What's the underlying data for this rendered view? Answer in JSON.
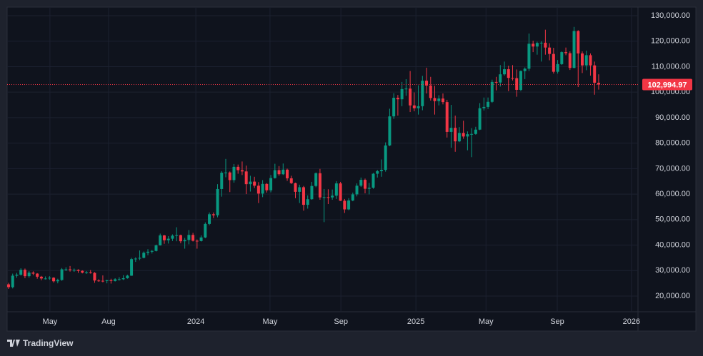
{
  "chart_data": {
    "type": "candlestick",
    "up_color": "#089981",
    "down_color": "#f23645",
    "grid": true,
    "xlim": [
      -0.35,
      153.6
    ],
    "xticks": [
      {
        "value": 10.1,
        "label": "May"
      },
      {
        "value": 24.4,
        "label": "Aug"
      },
      {
        "value": 45.7,
        "label": "2024"
      },
      {
        "value": 63.8,
        "label": "May"
      },
      {
        "value": 81.1,
        "label": "Sep"
      },
      {
        "value": 99.4,
        "label": "2025"
      },
      {
        "value": 116.5,
        "label": "May"
      },
      {
        "value": 133.9,
        "label": "Sep"
      },
      {
        "value": 152.0,
        "label": "2026"
      }
    ],
    "ylim": [
      13840,
      133360
    ],
    "yticks": [
      {
        "value": 20000,
        "label": "20,000.00"
      },
      {
        "value": 30000,
        "label": "30,000.00"
      },
      {
        "value": 40000,
        "label": "40,000.00"
      },
      {
        "value": 50000,
        "label": "50,000.00"
      },
      {
        "value": 60000,
        "label": "60,000.00"
      },
      {
        "value": 70000,
        "label": "70,000.00"
      },
      {
        "value": 80000,
        "label": "80,000.00"
      },
      {
        "value": 90000,
        "label": "90,000.00"
      },
      {
        "value": 100000,
        "label": "100,000.00"
      },
      {
        "value": 110000,
        "label": "110,000.00"
      },
      {
        "value": 120000,
        "label": "120,000.00"
      },
      {
        "value": 130000,
        "label": "130,000.00"
      }
    ],
    "last_price": {
      "value": 102994.97,
      "label": "102,994.97"
    },
    "candles": [
      [
        24600,
        25200,
        22800,
        23500
      ],
      [
        23500,
        28800,
        23000,
        28000
      ],
      [
        28000,
        29100,
        27200,
        28400
      ],
      [
        28400,
        30900,
        28000,
        30300
      ],
      [
        30300,
        30800,
        27000,
        27800
      ],
      [
        27800,
        29800,
        27200,
        29200
      ],
      [
        29200,
        29700,
        28200,
        28800
      ],
      [
        28800,
        29000,
        26800,
        27600
      ],
      [
        27600,
        27900,
        26200,
        26900
      ],
      [
        26900,
        27700,
        26500,
        26900
      ],
      [
        26900,
        27800,
        26400,
        27200
      ],
      [
        27200,
        27400,
        25300,
        25800
      ],
      [
        25800,
        26800,
        25000,
        26300
      ],
      [
        26300,
        31000,
        26000,
        30500
      ],
      [
        30500,
        31300,
        29800,
        30500
      ],
      [
        30500,
        31800,
        29600,
        30200
      ],
      [
        30200,
        30800,
        29500,
        30300
      ],
      [
        30300,
        30500,
        29100,
        29900
      ],
      [
        29900,
        30100,
        28900,
        29200
      ],
      [
        29200,
        29800,
        28700,
        29300
      ],
      [
        29300,
        30200,
        28800,
        29100
      ],
      [
        29100,
        29400,
        25200,
        26100
      ],
      [
        26100,
        26600,
        25600,
        26000
      ],
      [
        26000,
        28100,
        25400,
        25900
      ],
      [
        25900,
        26400,
        25000,
        26200
      ],
      [
        26200,
        26800,
        24900,
        25900
      ],
      [
        25900,
        27000,
        25700,
        26600
      ],
      [
        26600,
        27400,
        26100,
        26600
      ],
      [
        26600,
        28200,
        26300,
        27000
      ],
      [
        27000,
        28400,
        26800,
        28000
      ],
      [
        28000,
        35000,
        27900,
        34500
      ],
      [
        34500,
        35200,
        33400,
        34700
      ],
      [
        34700,
        37900,
        34100,
        35000
      ],
      [
        35000,
        37500,
        34800,
        37000
      ],
      [
        37000,
        38400,
        36000,
        37400
      ],
      [
        37400,
        38100,
        36700,
        37700
      ],
      [
        37700,
        40200,
        37500,
        39900
      ],
      [
        39900,
        44500,
        39800,
        43800
      ],
      [
        43800,
        44000,
        40500,
        41900
      ],
      [
        41900,
        43500,
        40600,
        42500
      ],
      [
        42500,
        44200,
        41600,
        43700
      ],
      [
        43700,
        47000,
        41500,
        43900
      ],
      [
        43900,
        44100,
        40700,
        41500
      ],
      [
        41500,
        42800,
        38600,
        42000
      ],
      [
        42000,
        45900,
        40300,
        44000
      ],
      [
        44000,
        44800,
        41400,
        41700
      ],
      [
        41700,
        42200,
        38600,
        41600
      ],
      [
        41600,
        43800,
        41400,
        43000
      ],
      [
        43000,
        48900,
        42700,
        48300
      ],
      [
        48300,
        52800,
        47800,
        52100
      ],
      [
        52100,
        52800,
        50600,
        51700
      ],
      [
        51700,
        63900,
        50900,
        62000
      ],
      [
        62000,
        69000,
        59000,
        68400
      ],
      [
        68400,
        73800,
        66600,
        68500
      ],
      [
        68500,
        68900,
        60800,
        65500
      ],
      [
        65500,
        71800,
        64500,
        70700
      ],
      [
        70700,
        71600,
        68000,
        69400
      ],
      [
        69400,
        72800,
        67500,
        68900
      ],
      [
        68900,
        71200,
        60000,
        63900
      ],
      [
        63900,
        67200,
        61000,
        64900
      ],
      [
        64900,
        66800,
        62400,
        63300
      ],
      [
        63300,
        64700,
        56500,
        60200
      ],
      [
        60200,
        65500,
        58800,
        64000
      ],
      [
        64000,
        64300,
        60600,
        61500
      ],
      [
        61500,
        67500,
        60700,
        66300
      ],
      [
        66300,
        71900,
        66100,
        69400
      ],
      [
        69400,
        71000,
        67200,
        67800
      ],
      [
        67800,
        72000,
        67500,
        69600
      ],
      [
        69600,
        70000,
        65200,
        66200
      ],
      [
        66200,
        67200,
        64000,
        64300
      ],
      [
        64300,
        64500,
        58400,
        60900
      ],
      [
        60900,
        63700,
        56500,
        62700
      ],
      [
        62700,
        63200,
        53500,
        55800
      ],
      [
        55800,
        59500,
        54300,
        58000
      ],
      [
        58000,
        64800,
        57800,
        63200
      ],
      [
        63200,
        68500,
        62700,
        68200
      ],
      [
        68200,
        69900,
        57800,
        58700
      ],
      [
        58700,
        62000,
        49000,
        58800
      ],
      [
        58800,
        61900,
        56100,
        58700
      ],
      [
        58700,
        61800,
        57800,
        59400
      ],
      [
        59400,
        65100,
        58100,
        64200
      ],
      [
        64200,
        64800,
        57300,
        57400
      ],
      [
        57400,
        58100,
        52600,
        54000
      ],
      [
        54000,
        58400,
        53700,
        57500
      ],
      [
        57500,
        60600,
        57200,
        59900
      ],
      [
        59900,
        64200,
        59100,
        63300
      ],
      [
        63300,
        66500,
        62800,
        65600
      ],
      [
        65600,
        66100,
        60300,
        62100
      ],
      [
        62100,
        64400,
        59900,
        62500
      ],
      [
        62500,
        68300,
        62100,
        68000
      ],
      [
        68000,
        69500,
        66500,
        69000
      ],
      [
        69000,
        73600,
        66800,
        69500
      ],
      [
        69500,
        80300,
        68800,
        79100
      ],
      [
        79100,
        93500,
        78800,
        90500
      ],
      [
        90500,
        99600,
        89500,
        97800
      ],
      [
        97800,
        98900,
        90800,
        97200
      ],
      [
        97200,
        104000,
        94500,
        101200
      ],
      [
        101200,
        105100,
        98600,
        101400
      ],
      [
        101400,
        108300,
        92200,
        94800
      ],
      [
        94800,
        99900,
        92500,
        93700
      ],
      [
        93700,
        102700,
        91200,
        94500
      ],
      [
        94500,
        106400,
        92900,
        104500
      ],
      [
        104500,
        109600,
        99500,
        102600
      ],
      [
        102600,
        106000,
        96700,
        97700
      ],
      [
        97700,
        102500,
        91200,
        96500
      ],
      [
        96500,
        98800,
        94800,
        97500
      ],
      [
        97500,
        99500,
        95200,
        96100
      ],
      [
        96100,
        97000,
        82200,
        84400
      ],
      [
        84400,
        95000,
        78200,
        86000
      ],
      [
        86000,
        90800,
        76600,
        80700
      ],
      [
        80700,
        86300,
        80400,
        84000
      ],
      [
        84000,
        88800,
        81700,
        82600
      ],
      [
        82600,
        84600,
        77200,
        83500
      ],
      [
        83500,
        85900,
        74500,
        83600
      ],
      [
        83600,
        86400,
        83300,
        85300
      ],
      [
        85300,
        95700,
        85100,
        93700
      ],
      [
        93700,
        97900,
        92800,
        94200
      ],
      [
        94200,
        97900,
        93400,
        96200
      ],
      [
        96200,
        104900,
        95800,
        104000
      ],
      [
        104000,
        106000,
        100700,
        103800
      ],
      [
        103800,
        110600,
        102200,
        107000
      ],
      [
        107000,
        112000,
        106500,
        109000
      ],
      [
        109000,
        110400,
        100400,
        105600
      ],
      [
        105600,
        110600,
        104600,
        105500
      ],
      [
        105500,
        108900,
        98200,
        100900
      ],
      [
        100900,
        108500,
        100400,
        108300
      ],
      [
        108300,
        109700,
        105100,
        109200
      ],
      [
        109200,
        123000,
        108300,
        119000
      ],
      [
        119000,
        120200,
        115700,
        117900
      ],
      [
        117900,
        119800,
        114700,
        119300
      ],
      [
        119300,
        120000,
        112000,
        119400
      ],
      [
        119400,
        124500,
        114700,
        117500
      ],
      [
        117500,
        119200,
        112500,
        115000
      ],
      [
        115000,
        117400,
        107300,
        108000
      ],
      [
        108000,
        112600,
        107300,
        111000
      ],
      [
        111000,
        116000,
        110700,
        115700
      ],
      [
        115700,
        117500,
        114500,
        115300
      ],
      [
        115300,
        116000,
        108700,
        109500
      ],
      [
        109500,
        125600,
        109400,
        124000
      ],
      [
        124000,
        124300,
        102000,
        115200
      ],
      [
        115200,
        116000,
        107500,
        110500
      ],
      [
        110500,
        116300,
        108600,
        114500
      ],
      [
        114500,
        115200,
        106500,
        110500
      ],
      [
        110500,
        112000,
        99000,
        103700
      ],
      [
        103700,
        107000,
        101000,
        102994.97
      ]
    ]
  },
  "footer": {
    "brand": "TradingView"
  }
}
